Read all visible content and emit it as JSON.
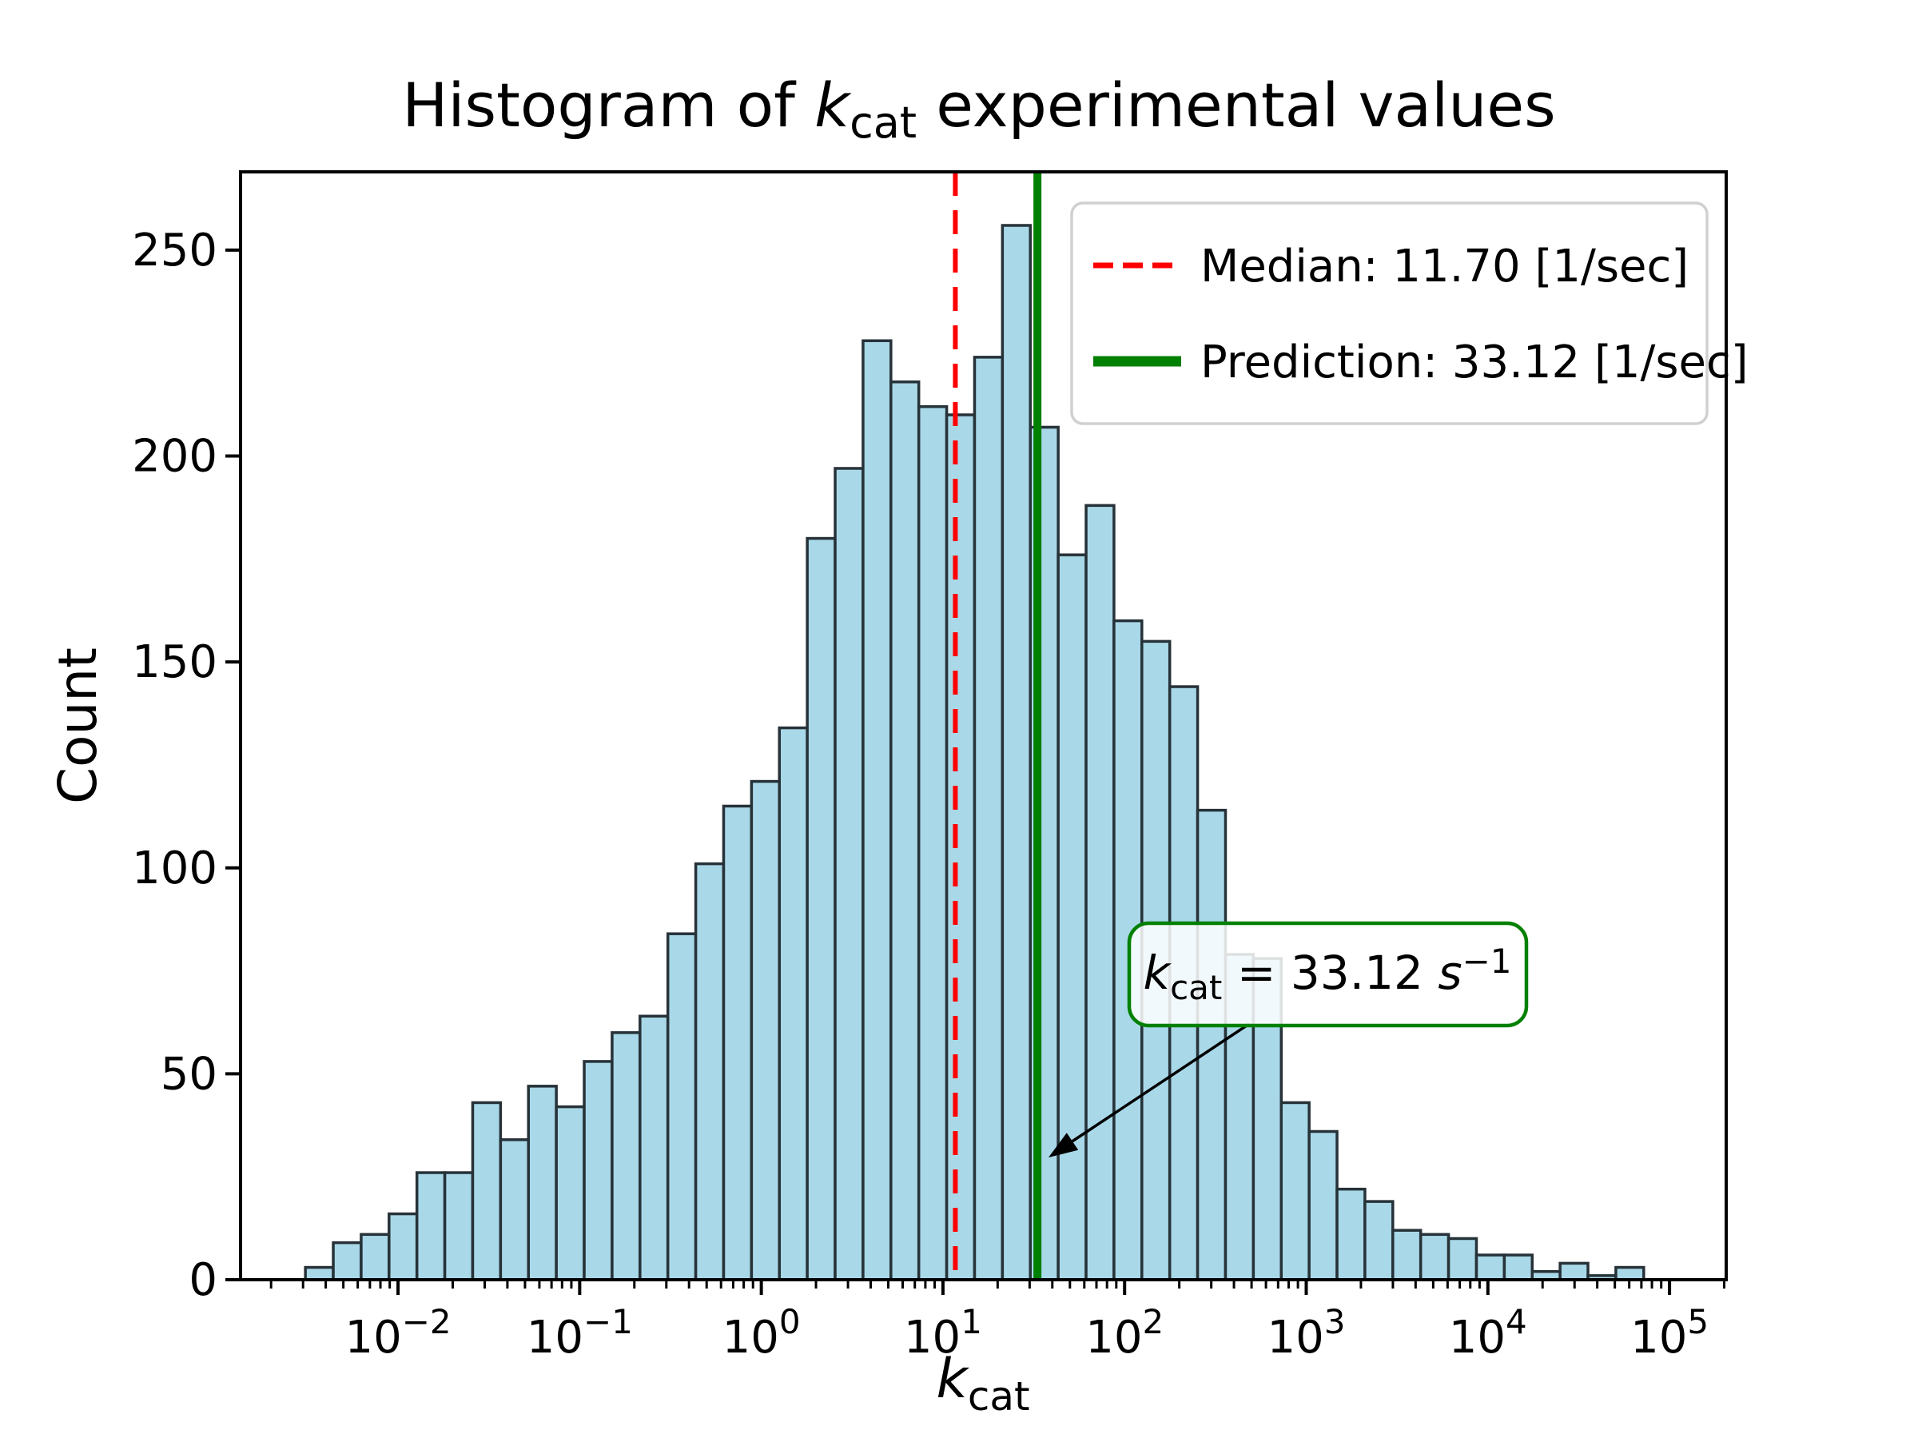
{
  "title": {
    "pre": "Histogram of ",
    "var": "k",
    "sub": "cat",
    "post": " experimental values"
  },
  "axes": {
    "ylabel": "Count",
    "xlabel": {
      "var": "k",
      "sub": "cat"
    },
    "y_tick_labels": [
      "0",
      "50",
      "100",
      "150",
      "200",
      "250"
    ],
    "x_tick_base": "10",
    "x_tick_exponent_labels": [
      "−2",
      "−1",
      "0",
      "1",
      "2",
      "3",
      "4",
      "5"
    ]
  },
  "legend": {
    "items": [
      {
        "label": "Median: 11.70 [1/sec]",
        "style": "dashed",
        "color": "#ff0000"
      },
      {
        "label": "Prediction: 33.12 [1/sec]",
        "style": "solid",
        "color": "#008000"
      }
    ]
  },
  "annotation": {
    "var": "k",
    "sub": "cat",
    "mid": " = 33.12 ",
    "svar": "s",
    "sup": "−1"
  },
  "colors": {
    "bar_fill": "#a9d8e8",
    "bar_edge": "#263238",
    "median_line": "#ff0000",
    "prediction_line": "#008000",
    "legend_border": "#d0d0d0",
    "annotation_border": "#008000",
    "axis": "#000000"
  },
  "chart_data": {
    "type": "bar",
    "subtype": "histogram",
    "title": "Histogram of k_cat experimental values",
    "xlabel": "k_cat",
    "ylabel": "Count",
    "x_scale": "log10",
    "xlim_log10": [
      -2.867,
      5.312
    ],
    "ylim": [
      0,
      269
    ],
    "grid": false,
    "bin_log10_start": -2.51,
    "bin_log10_width": 0.1535,
    "n_bins": 48,
    "counts": [
      3,
      9,
      11,
      16,
      26,
      26,
      43,
      34,
      47,
      42,
      53,
      60,
      64,
      84,
      101,
      115,
      121,
      134,
      180,
      197,
      228,
      218,
      212,
      210,
      224,
      256,
      207,
      176,
      188,
      160,
      155,
      144,
      114,
      79,
      78,
      43,
      36,
      22,
      19,
      12,
      11,
      10,
      6,
      6,
      2,
      4,
      1,
      3
    ],
    "x_major_ticks_log10": [
      -2,
      -1,
      0,
      1,
      2,
      3,
      4,
      5
    ],
    "y_major_ticks": [
      0,
      50,
      100,
      150,
      200,
      250
    ],
    "median_value_per_sec": 11.7,
    "prediction_value_per_sec": 33.12,
    "legend_entries": [
      "Median: 11.70 [1/sec]",
      "Prediction: 33.12 [1/sec]"
    ],
    "annotation_text": "k_cat = 33.12 s^-1",
    "legend_position": "upper right"
  }
}
